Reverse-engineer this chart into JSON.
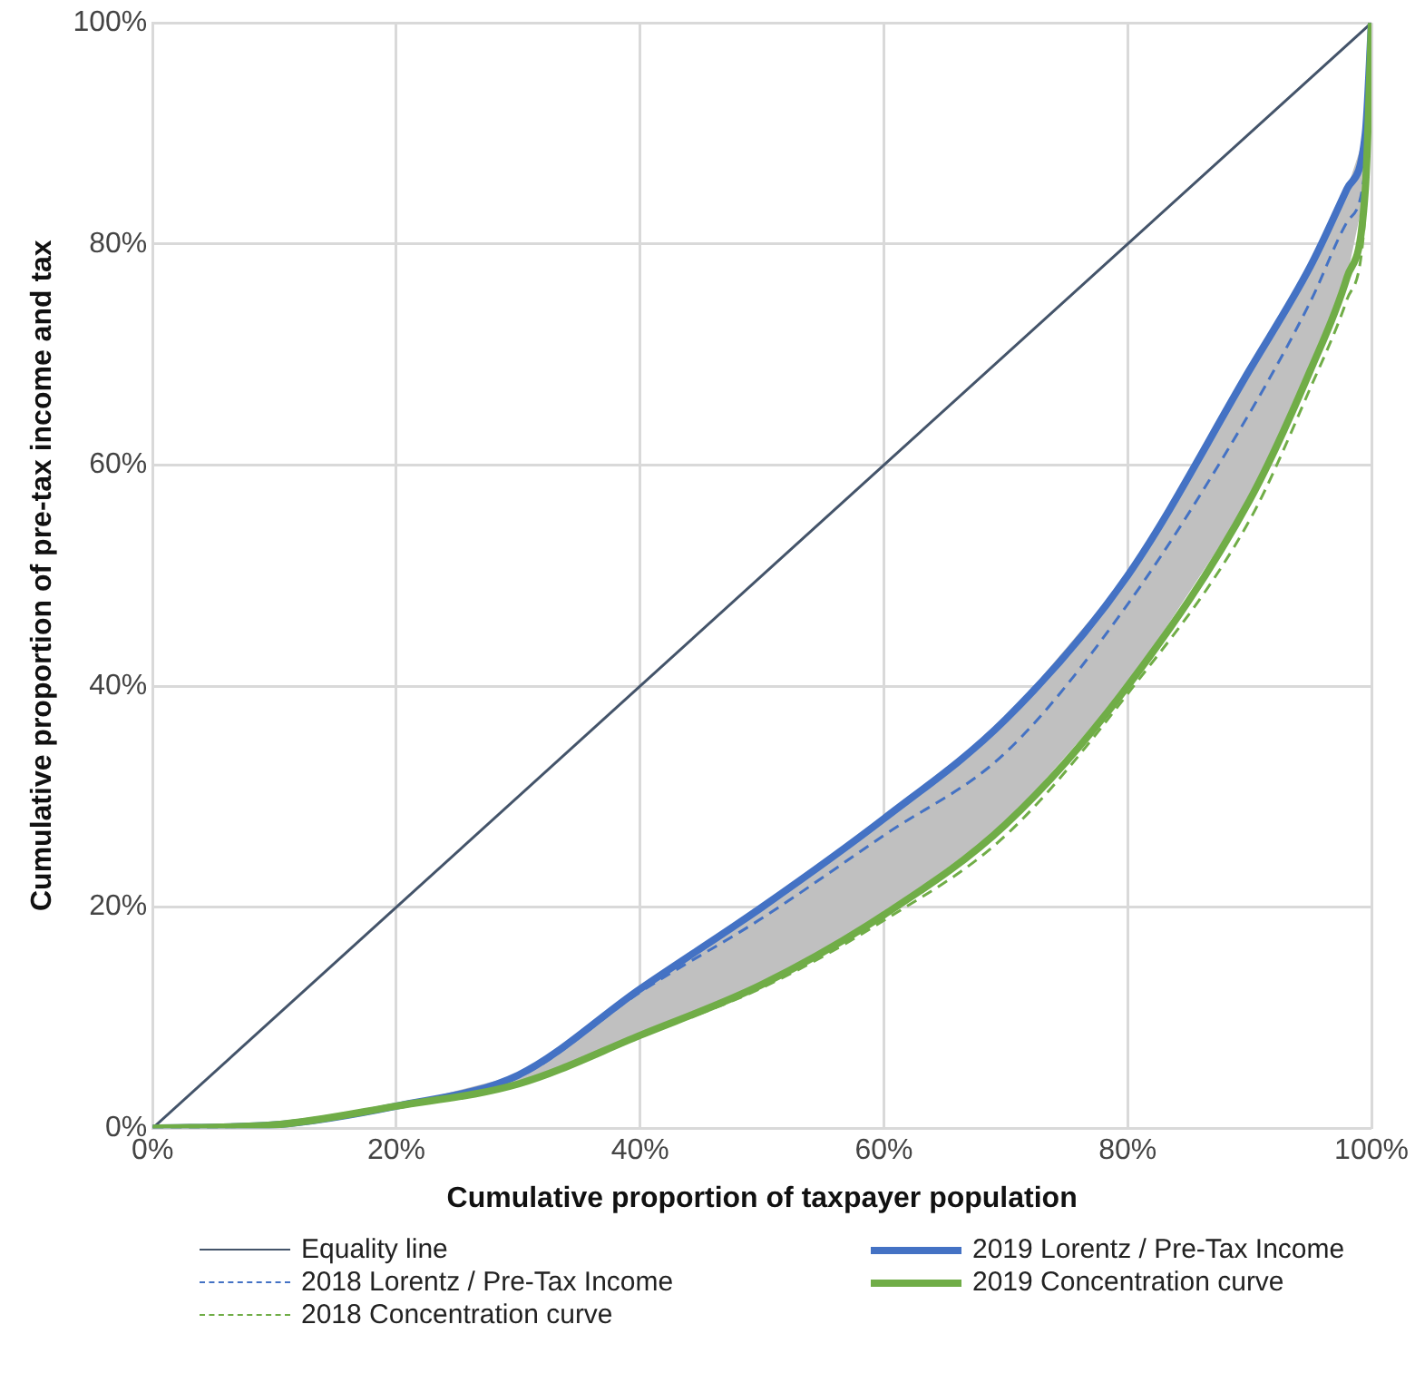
{
  "chart_data": {
    "type": "line",
    "xlabel": "Cumulative proportion of taxpayer population",
    "ylabel": "Cumulative proportion of pre-tax income and tax",
    "xlim": [
      0,
      100
    ],
    "ylim": [
      0,
      100
    ],
    "xticks": [
      {
        "value": 0,
        "label": "0%"
      },
      {
        "value": 20,
        "label": "20%"
      },
      {
        "value": 40,
        "label": "40%"
      },
      {
        "value": 60,
        "label": "60%"
      },
      {
        "value": 80,
        "label": "80%"
      },
      {
        "value": 100,
        "label": "100%"
      }
    ],
    "yticks": [
      {
        "value": 0,
        "label": "0%"
      },
      {
        "value": 20,
        "label": "20%"
      },
      {
        "value": 40,
        "label": "40%"
      },
      {
        "value": 60,
        "label": "60%"
      },
      {
        "value": 80,
        "label": "80%"
      },
      {
        "value": 100,
        "label": "100%"
      }
    ],
    "grid": true,
    "legend": "bottom",
    "marker": "none",
    "series": [
      {
        "name": "Equality line",
        "color": "#44546a",
        "line_style": "solid",
        "x": [
          0,
          100
        ],
        "values": [
          0,
          100
        ]
      },
      {
        "name": "2019 Lorentz / Pre-Tax Income",
        "color": "#4472c4",
        "line_style": "solid",
        "x": [
          0,
          10,
          20,
          30,
          40,
          50,
          60,
          70,
          80,
          90,
          95,
          98,
          99.5,
          100
        ],
        "values": [
          0,
          0.3,
          2,
          4.8,
          12.6,
          20,
          28,
          37,
          50,
          68.6,
          78,
          85,
          90,
          100
        ],
        "lower": [
          0,
          0.3,
          2,
          4,
          8.4,
          13,
          19.3,
          27.5,
          40,
          56.8,
          68.6,
          77,
          85,
          100
        ],
        "upper": [
          0,
          0.3,
          2,
          4.8,
          12.6,
          20,
          28,
          37,
          50,
          68.6,
          78,
          85,
          90,
          100
        ]
      },
      {
        "name": "2018 Lorentz / Pre-Tax Income",
        "color": "#4472c4",
        "line_style": "dashed",
        "x": [
          0,
          10,
          20,
          30,
          40,
          50,
          60,
          70,
          80,
          90,
          95,
          98,
          99.5,
          100
        ],
        "values": [
          0,
          0.3,
          2,
          4.6,
          12.3,
          19,
          26.5,
          34,
          47.4,
          64.7,
          74.8,
          82,
          87,
          100
        ]
      },
      {
        "name": "2019 Concentration curve",
        "color": "#70ad47",
        "line_style": "solid",
        "x": [
          0,
          10,
          20,
          30,
          40,
          50,
          60,
          70,
          80,
          90,
          95,
          98,
          99.5,
          100
        ],
        "values": [
          0,
          0.3,
          2,
          4,
          8.4,
          13,
          19.3,
          27.5,
          40,
          56.8,
          68.6,
          77,
          85,
          100
        ]
      },
      {
        "name": "2018 Concentration curve",
        "color": "#70ad47",
        "line_style": "dashed",
        "x": [
          0,
          10,
          20,
          30,
          40,
          50,
          60,
          70,
          80,
          90,
          95,
          98,
          99.5,
          100
        ],
        "values": [
          0,
          0.3,
          1.9,
          3.9,
          8.3,
          12.7,
          18.8,
          26.5,
          39.3,
          55,
          67,
          75,
          83,
          100
        ]
      }
    ]
  }
}
